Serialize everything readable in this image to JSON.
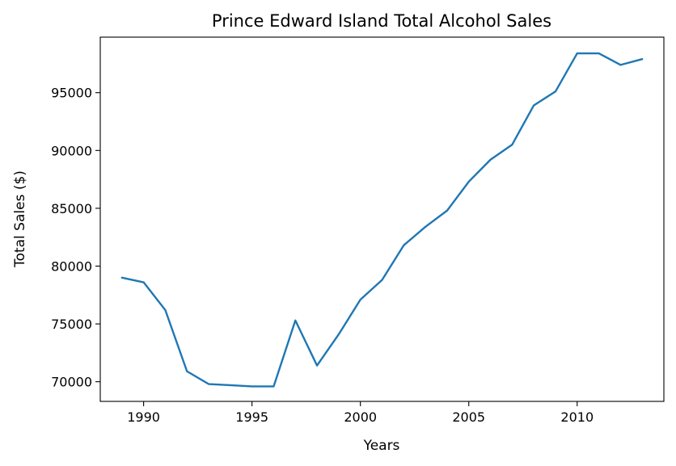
{
  "chart_data": {
    "type": "line",
    "title": "Prince Edward Island Total Alcohol Sales",
    "xlabel": "Years",
    "ylabel": "Total Sales ($)",
    "xlim": [
      1988,
      2014
    ],
    "ylim": [
      68300,
      99800
    ],
    "xticks": [
      1990,
      1995,
      2000,
      2005,
      2010
    ],
    "yticks": [
      70000,
      75000,
      80000,
      85000,
      90000,
      95000
    ],
    "grid": false,
    "series": [
      {
        "color": "#1f77b4",
        "x": [
          1989,
          1990,
          1991,
          1992,
          1993,
          1994,
          1995,
          1996,
          1997,
          1998,
          1999,
          2000,
          2001,
          2002,
          2003,
          2004,
          2005,
          2006,
          2007,
          2008,
          2009,
          2010,
          2011,
          2012,
          2013
        ],
        "y": [
          79000,
          78600,
          76200,
          70900,
          69800,
          69700,
          69600,
          69600,
          75300,
          71400,
          74100,
          77100,
          78800,
          81800,
          83400,
          84800,
          87300,
          89200,
          90500,
          93900,
          95100,
          98400,
          98400,
          97400,
          97900
        ]
      }
    ]
  }
}
